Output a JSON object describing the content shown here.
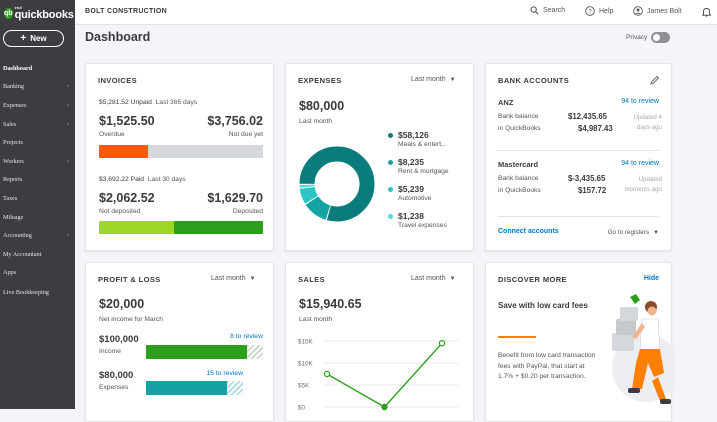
{
  "brand": {
    "name": "quickbooks",
    "tagline": "intuit"
  },
  "sidebar": {
    "new_label": "New",
    "items": [
      {
        "label": "Dashboard",
        "active": true,
        "chevron": false
      },
      {
        "label": "Banking",
        "chevron": true
      },
      {
        "label": "Expenses",
        "chevron": true
      },
      {
        "label": "Sales",
        "chevron": true
      },
      {
        "label": "Projects",
        "chevron": false
      },
      {
        "label": "Workers",
        "chevron": true
      },
      {
        "label": "Reports",
        "chevron": false
      },
      {
        "label": "Taxes",
        "chevron": false
      },
      {
        "label": "Mileage",
        "chevron": false
      },
      {
        "label": "Accounting",
        "chevron": true
      },
      {
        "label": "My Accountant",
        "chevron": false
      },
      {
        "label": "Apps",
        "chevron": false
      },
      {
        "label": "Live Bookkeeping",
        "chevron": false
      }
    ]
  },
  "topbar": {
    "company": "BOLT CONSTRUCTION",
    "search": "Search",
    "help": "Help",
    "user": "James Bolt"
  },
  "page": {
    "title": "Dashboard",
    "privacy_label": "Privacy"
  },
  "invoices": {
    "title": "INVOICES",
    "unpaid_amount": "$5,281.52 Unpaid",
    "unpaid_period": "Last 365 days",
    "overdue_value": "$1,525.50",
    "overdue_label": "Overdue",
    "notdue_value": "$3,756.02",
    "notdue_label": "Not due yet",
    "paid_amount": "$3,692.22 Paid",
    "paid_period": "Last 30 days",
    "notdeposited_value": "$2,062.52",
    "notdeposited_label": "Not deposited",
    "deposited_value": "$1,629.70",
    "deposited_label": "Deposited"
  },
  "expenses": {
    "title": "EXPENSES",
    "period": "Last month",
    "total": "$80,000",
    "total_label": "Last month",
    "legend": [
      {
        "value": "$58,126",
        "label": "Meals & entert...",
        "color": "#0a7c7c"
      },
      {
        "value": "$8,235",
        "label": "Rent & mortgage",
        "color": "#13a3a3"
      },
      {
        "value": "$5,239",
        "label": "Automotive",
        "color": "#2dc4c4"
      },
      {
        "value": "$1,238",
        "label": "Travel expenses",
        "color": "#4fdede"
      }
    ]
  },
  "bank": {
    "title": "BANK ACCOUNTS",
    "accounts": [
      {
        "name": "ANZ",
        "review": "94 to review",
        "bank_label": "Bank balance",
        "bank_value": "$12,435.65",
        "qb_label": "in QuickBooks",
        "qb_value": "$4,987.43",
        "updated": "Updated 4 days ago"
      },
      {
        "name": "Mastercard",
        "review": "94 to review",
        "bank_label": "Bank balance",
        "bank_value": "$-3,435.65",
        "qb_label": "in QuickBooks",
        "qb_value": "$157.72",
        "updated": "Updated moments ago"
      }
    ],
    "connect": "Connect accounts",
    "goto": "Go to registers"
  },
  "profit_loss": {
    "title": "PROFIT & LOSS",
    "period": "Last month",
    "net_income": "$20,000",
    "net_label": "Net income for March",
    "income_value": "$100,000",
    "income_label": "Income",
    "income_review": "8 to review",
    "expenses_value": "$80,000",
    "expenses_label": "Expenses",
    "expenses_review": "15 to review"
  },
  "sales": {
    "title": "SALES",
    "period": "Last month",
    "total": "$15,940.65",
    "total_label": "Last month"
  },
  "discover": {
    "title": "DISCOVER MORE",
    "hide": "Hide",
    "headline": "Save with low card fees",
    "body": "Benefit from low card transaction fees with PayPal, that start at 1.7% + $0.20 per transaction."
  },
  "chart_data": [
    {
      "type": "pie",
      "title": "",
      "categories": [
        "Meals & entert...",
        "Rent & mortgage",
        "Automotive",
        "Travel expenses"
      ],
      "values": [
        58126,
        8235,
        5239,
        1238
      ]
    },
    {
      "type": "line",
      "title": "",
      "xlabel": "",
      "ylabel": "",
      "yticks": [
        "$15K",
        "$10K",
        "$5K",
        "$0"
      ],
      "ylim": [
        0,
        15000
      ],
      "series": [
        {
          "values": [
            7500,
            0,
            14500
          ]
        }
      ],
      "grid": true
    }
  ],
  "colors": {
    "overdue": "#ff5a0a",
    "notdue": "#d4d7dc",
    "notdeposited": "#9dd624",
    "deposited": "#2ca01c",
    "income": "#2ca01c",
    "expenses": "#13a3a3",
    "accent": "#0077c5"
  }
}
